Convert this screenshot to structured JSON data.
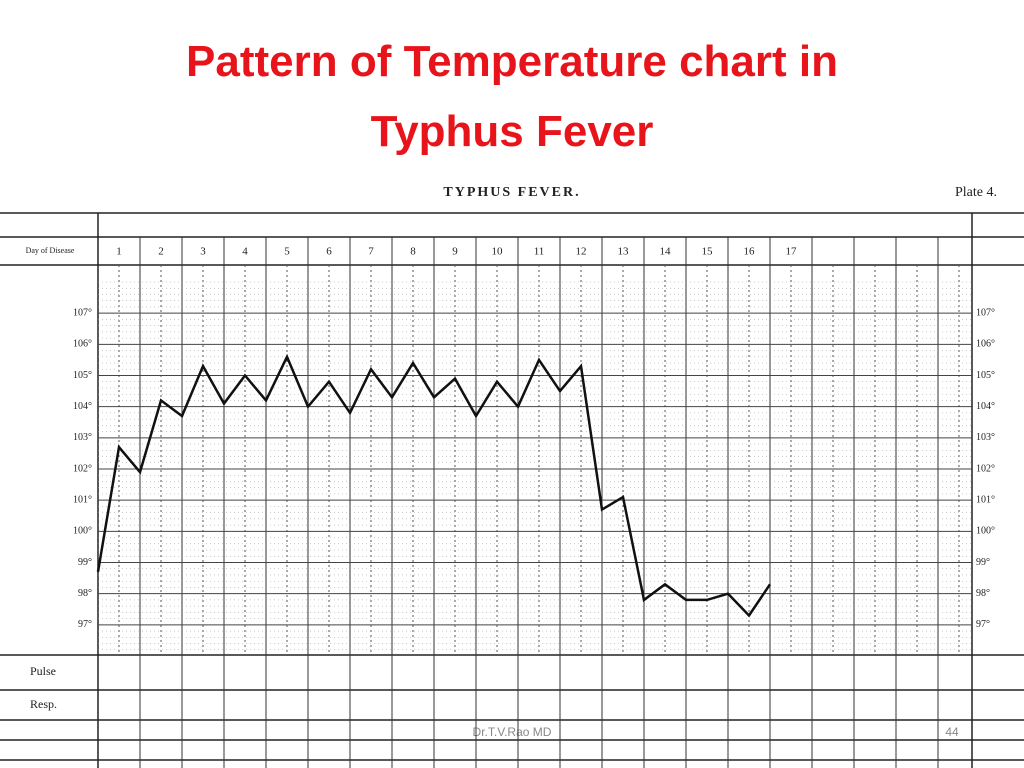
{
  "title": "Pattern of Temperature chart in Typhus Fever",
  "footer": {
    "author": "Dr.T.V.Rao MD",
    "page": "44"
  },
  "chart_data": {
    "type": "line",
    "title": "TYPHUS FEVER.",
    "plate": "Plate 4.",
    "x_label": "Day of Disease",
    "row_labels": [
      "Pulse",
      "Resp."
    ],
    "color": "#111111",
    "x": [
      0.5,
      1,
      1.5,
      2,
      2.5,
      3,
      3.5,
      4,
      4.5,
      5,
      5.5,
      6,
      6.5,
      7,
      7.5,
      8,
      8.5,
      9,
      9.5,
      10,
      10.5,
      11,
      11.5,
      12,
      12.5,
      13,
      13.5,
      14,
      14.5,
      15,
      15.5,
      16,
      16.5
    ],
    "values": [
      98.7,
      102.7,
      101.9,
      104.2,
      103.7,
      105.3,
      104.1,
      105.0,
      104.2,
      105.6,
      104.0,
      104.8,
      103.8,
      105.2,
      104.3,
      105.4,
      104.3,
      104.9,
      103.7,
      104.8,
      104.0,
      105.5,
      104.5,
      105.3,
      100.7,
      101.1,
      97.8,
      98.3,
      97.8,
      97.8,
      98.0,
      97.3,
      98.3
    ],
    "xlim": [
      0.5,
      21.5
    ],
    "xticks": [
      1,
      2,
      3,
      4,
      5,
      6,
      7,
      8,
      9,
      10,
      11,
      12,
      13,
      14,
      15,
      16,
      17
    ],
    "ylim": [
      96,
      108
    ],
    "yticks": [
      {
        "value": 97,
        "label": "97°"
      },
      {
        "value": 98,
        "label": "98°"
      },
      {
        "value": 99,
        "label": "99°"
      },
      {
        "value": 100,
        "label": "100°"
      },
      {
        "value": 101,
        "label": "101°"
      },
      {
        "value": 102,
        "label": "102°"
      },
      {
        "value": 103,
        "label": "103°"
      },
      {
        "value": 104,
        "label": "104°"
      },
      {
        "value": 105,
        "label": "105°"
      },
      {
        "value": 106,
        "label": "106°"
      },
      {
        "value": 107,
        "label": "107°"
      }
    ],
    "grid": true
  }
}
